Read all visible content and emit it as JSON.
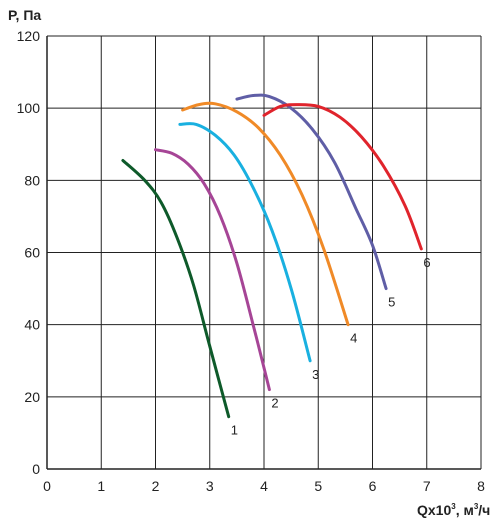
{
  "chart_data": {
    "type": "line",
    "ylabel": "P, Па",
    "xlabel_parts": {
      "base": "Qx10",
      "exp": "3",
      "units": ", м",
      "units_exp": "3",
      "tail": "/ч"
    },
    "xlim": [
      0,
      8
    ],
    "ylim": [
      0,
      120
    ],
    "xticks": [
      0,
      1,
      2,
      3,
      4,
      5,
      6,
      7,
      8
    ],
    "yticks": [
      0,
      20,
      40,
      60,
      80,
      100,
      120
    ],
    "grid": true,
    "legend": "inline-labels",
    "series": [
      {
        "label": "1",
        "color": "#0e5a2a",
        "x": [
          1.4,
          1.8,
          2.1,
          2.4,
          2.7,
          3.0,
          3.35
        ],
        "y": [
          85.5,
          80,
          74,
          64,
          51,
          34,
          14.5
        ]
      },
      {
        "label": "2",
        "color": "#a64596",
        "x": [
          2.0,
          2.3,
          2.6,
          2.9,
          3.2,
          3.5,
          3.8,
          4.1
        ],
        "y": [
          88.5,
          87.5,
          84.5,
          79,
          70,
          57,
          40,
          22
        ]
      },
      {
        "label": "3",
        "color": "#19b0e0",
        "x": [
          2.45,
          2.75,
          3.1,
          3.45,
          3.8,
          4.15,
          4.5,
          4.85
        ],
        "y": [
          95.5,
          95.5,
          92.5,
          87,
          78,
          66,
          50,
          30
        ]
      },
      {
        "label": "4",
        "color": "#f08a27",
        "x": [
          2.5,
          2.8,
          3.1,
          3.5,
          3.9,
          4.3,
          4.7,
          5.1,
          5.55
        ],
        "y": [
          99.5,
          101,
          101.2,
          99,
          94.5,
          87,
          76,
          61,
          40
        ]
      },
      {
        "label": "5",
        "color": "#5f5ea6",
        "x": [
          3.5,
          3.8,
          4.1,
          4.5,
          4.9,
          5.3,
          5.7,
          6.0,
          6.25
        ],
        "y": [
          102.5,
          103.5,
          103.2,
          100,
          94,
          85,
          72,
          62,
          50
        ]
      },
      {
        "label": "6",
        "color": "#e0242c",
        "x": [
          4.0,
          4.3,
          4.6,
          5.0,
          5.4,
          5.8,
          6.2,
          6.6,
          6.9
        ],
        "y": [
          98,
          100.5,
          101,
          100.5,
          97.5,
          92,
          84,
          73,
          61
        ]
      }
    ]
  }
}
